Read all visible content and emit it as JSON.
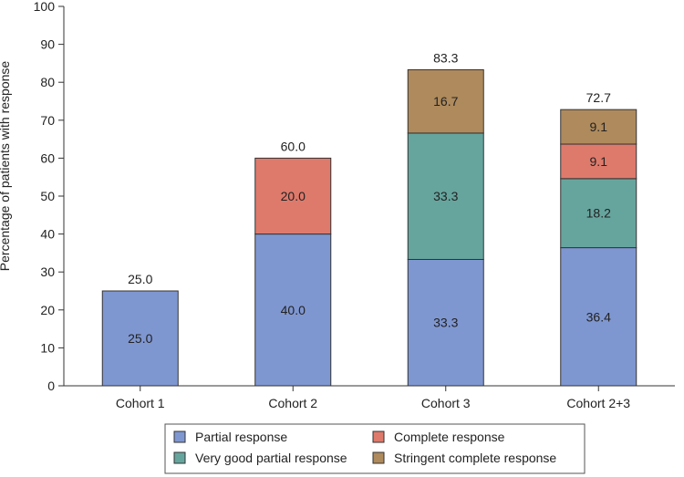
{
  "chart_data": {
    "type": "bar",
    "stacked": true,
    "categories": [
      "Cohort 1",
      "Cohort 2",
      "Cohort 3",
      "Cohort 2+3"
    ],
    "series": [
      {
        "name": "Partial response",
        "color": "#7f97d1",
        "values": [
          25.0,
          40.0,
          33.3,
          36.4
        ]
      },
      {
        "name": "Very good partial response",
        "color": "#66a59e",
        "values": [
          0,
          0,
          33.3,
          18.2
        ]
      },
      {
        "name": "Complete response",
        "color": "#de7a6c",
        "values": [
          0,
          20.0,
          0,
          9.1
        ]
      },
      {
        "name": "Stringent complete response",
        "color": "#ae8a5c",
        "values": [
          0,
          0,
          16.7,
          9.1
        ]
      }
    ],
    "segment_labels": [
      [
        "25.0",
        "",
        "",
        ""
      ],
      [
        "40.0",
        "",
        "20.0",
        ""
      ],
      [
        "33.3",
        "33.3",
        "",
        "16.7"
      ],
      [
        "36.4",
        "18.2",
        "9.1",
        "9.1"
      ]
    ],
    "totals": [
      "25.0",
      "60.0",
      "83.3",
      "72.7"
    ],
    "ylabel": "Percentage of patients with response",
    "xlabel": "",
    "ylim": [
      0,
      100
    ],
    "yticks": [
      0,
      10,
      20,
      30,
      40,
      50,
      60,
      70,
      80,
      90,
      100
    ],
    "grid": false,
    "legend": {
      "placement": "bottom",
      "order": [
        "Partial response",
        "Complete response",
        "Very good partial response",
        "Stringent complete response"
      ]
    }
  }
}
